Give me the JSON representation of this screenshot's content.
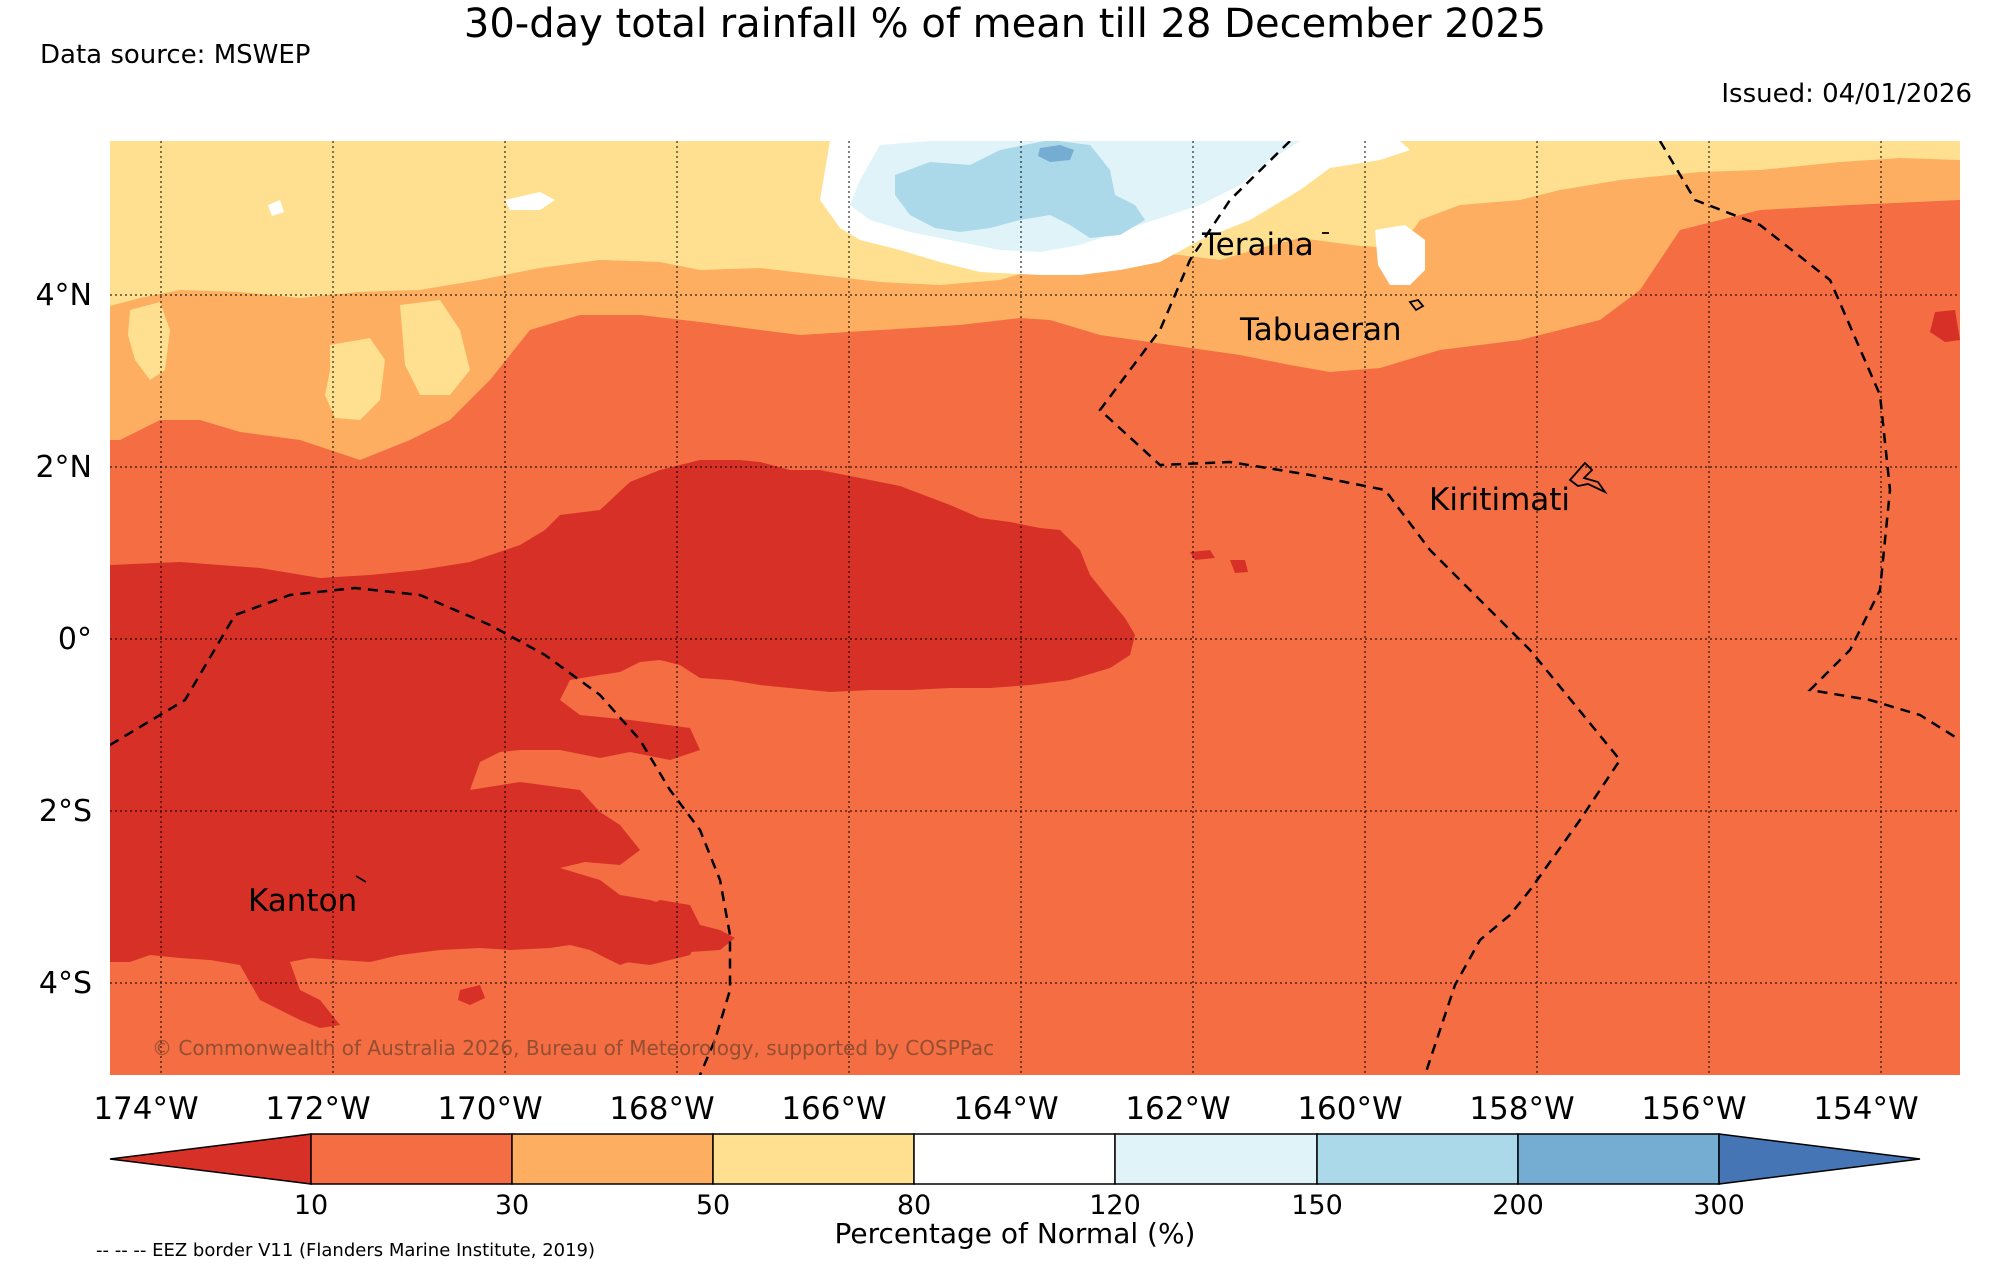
{
  "title": "30-day total rainfall % of mean till 28 December 2025",
  "source": "Data source: MSWEP",
  "issued": "Issued: 04/01/2026",
  "copyright": "© Commonwealth of Australia 2026, Bureau of Meteorology, supported by COSPPac",
  "eez_note": "-- -- -- EEZ border V11 (Flanders Marine Institute, 2019)",
  "lon_labels": [
    "174°W",
    "172°W",
    "170°W",
    "168°W",
    "166°W",
    "164°W",
    "162°W",
    "160°W",
    "158°W",
    "156°W",
    "154°W"
  ],
  "lat_labels": [
    "4°N",
    "2°N",
    "0°",
    "2°S",
    "4°S"
  ],
  "places": [
    "Teraina",
    "Tabuaeran",
    "Kiritimati",
    "Kanton"
  ],
  "colorbar": {
    "label": "Percentage of Normal (%)",
    "ticks": [
      "10",
      "30",
      "50",
      "80",
      "120",
      "150",
      "200",
      "300"
    ],
    "colors": [
      "#d73027",
      "#f46d43",
      "#fdae61",
      "#fee090",
      "#ffffff",
      "#e0f3f8",
      "#abd9e9",
      "#74add1",
      "#4575b4"
    ]
  }
}
